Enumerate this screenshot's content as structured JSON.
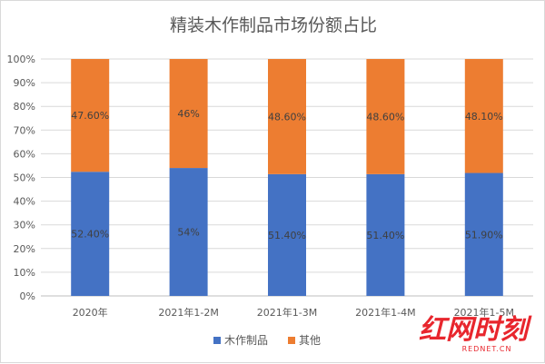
{
  "chart_data": {
    "type": "bar",
    "stacked": true,
    "percent": true,
    "title": "精装木作制品市场份额占比",
    "categories": [
      "2020年",
      "2021年1-2M",
      "2021年1-3M",
      "2021年1-4M",
      "2021年1-5M"
    ],
    "series": [
      {
        "name": "木作制品",
        "color": "#4472c4",
        "values": [
          52.4,
          54,
          51.4,
          51.4,
          51.9
        ],
        "labels": [
          "52.40%",
          "54%",
          "51.40%",
          "51.40%",
          "51.90%"
        ]
      },
      {
        "name": "其他",
        "color": "#ed7d31",
        "values": [
          47.6,
          46,
          48.6,
          48.6,
          48.1
        ],
        "labels": [
          "47.60%",
          "46%",
          "48.60%",
          "48.60%",
          "48.10%"
        ]
      }
    ],
    "ylim": [
      0,
      100
    ],
    "yticks": [
      "0%",
      "10%",
      "20%",
      "30%",
      "40%",
      "50%",
      "60%",
      "70%",
      "80%",
      "90%",
      "100%"
    ],
    "grid": true,
    "legend": "bottom-center"
  },
  "watermark": {
    "text": "红网时刻",
    "sub": "REDNET.CN"
  }
}
